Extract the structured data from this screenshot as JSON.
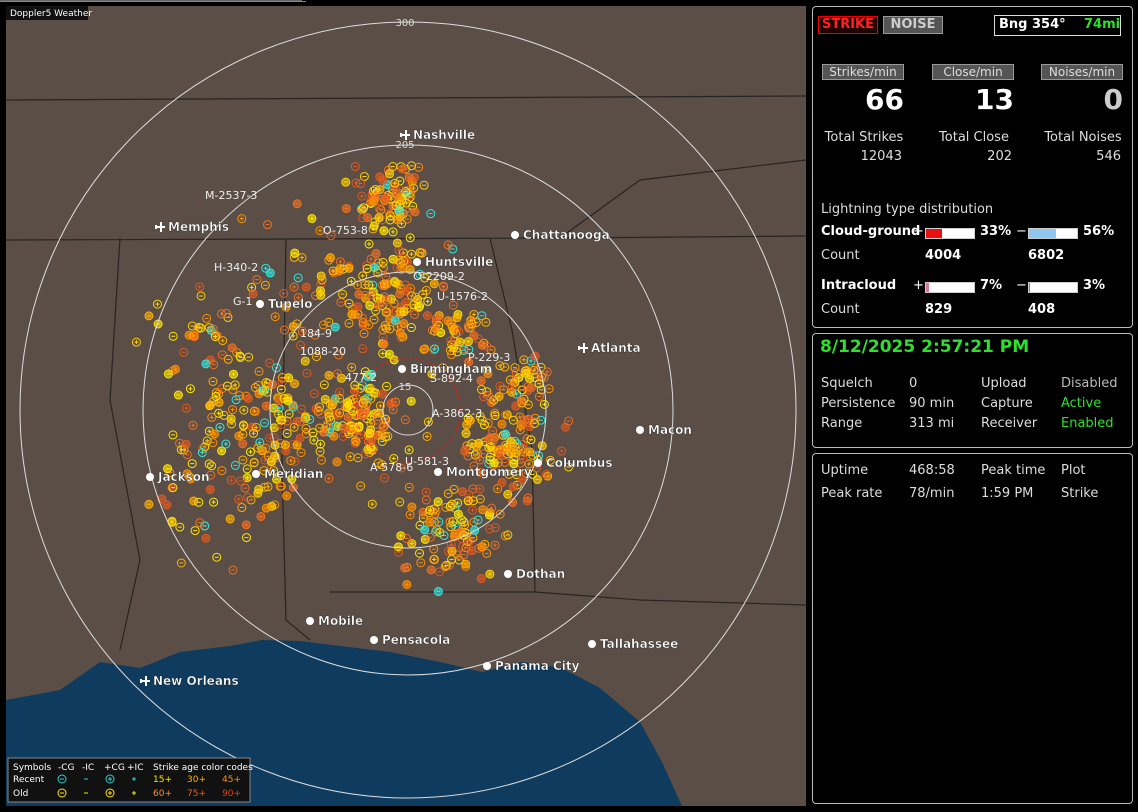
{
  "map": {
    "title": "Doppler5 Weather",
    "range_labels": [
      "300",
      "205",
      "15"
    ],
    "cities": [
      "Nashville",
      "Memphis",
      "Chattanooga",
      "Huntsville",
      "Tupelo",
      "Birmingham",
      "Atlanta",
      "Macon",
      "Columbus",
      "Montgomery",
      "Jackson",
      "Meridian",
      "Dothan",
      "Mobile",
      "Pensacola",
      "Tallahassee",
      "Panama City",
      "New Orleans"
    ],
    "storm_labels": [
      "M-2537-3",
      "O-753-8",
      "H-340-2",
      "G-1",
      "O-2209-2",
      "U-1576-2",
      "184-9",
      "1088-20",
      "477-2",
      "S-892-4",
      "A-3862-3",
      "P-229-3",
      "A-578-6",
      "U-581-3"
    ],
    "legend": {
      "symbols_title": "Symbols",
      "symbol_names": [
        "-CG",
        "-IC",
        "+CG",
        "+IC"
      ],
      "age_title": "Strike age color codes",
      "rows": [
        "Recent",
        "Old"
      ],
      "recent_ages": [
        "15+",
        "30+",
        "45+"
      ],
      "old_ages": [
        "60+",
        "75+",
        "90+"
      ]
    }
  },
  "panel": {
    "strike_button": "STRIKE",
    "noise_button": "NOISE",
    "bearing": "Bng 354°",
    "distance": "74mi",
    "rate_labels": [
      "Strikes/min",
      "Close/min",
      "Noises/min"
    ],
    "rates": [
      66,
      13,
      0
    ],
    "total_labels": [
      "Total Strikes",
      "Total Close",
      "Total Noises"
    ],
    "totals": [
      12043,
      202,
      546
    ],
    "distribution_title": "Lightning type distribution",
    "count_label": "Count",
    "distribution": [
      {
        "name": "Cloud-ground",
        "signs": [
          "+",
          "−"
        ],
        "values": [
          33,
          56
        ],
        "value_labels": [
          "33%",
          "56%"
        ],
        "colors": [
          "#e81010",
          "#8cc8f0"
        ],
        "counts": [
          4004,
          6802
        ]
      },
      {
        "name": "Intracloud",
        "signs": [
          "+",
          "−"
        ],
        "values": [
          7,
          3
        ],
        "value_labels": [
          "7%",
          "3%"
        ],
        "colors": [
          "#e070a0",
          "#20c040"
        ],
        "counts": [
          829,
          408
        ]
      }
    ],
    "datetime": "8/12/2025 2:57:21 PM",
    "settings": [
      [
        "Squelch",
        "0",
        "Upload",
        "Disabled"
      ],
      [
        "Persistence",
        "90 min",
        "Capture",
        "Active"
      ],
      [
        "Range",
        "313 mi",
        "Receiver",
        "Enabled"
      ]
    ],
    "stats": [
      [
        "Uptime",
        "468:58",
        "Peak time",
        "Plot"
      ],
      [
        "Peak rate",
        "78/min",
        "1:59 PM",
        "Strike"
      ]
    ]
  }
}
